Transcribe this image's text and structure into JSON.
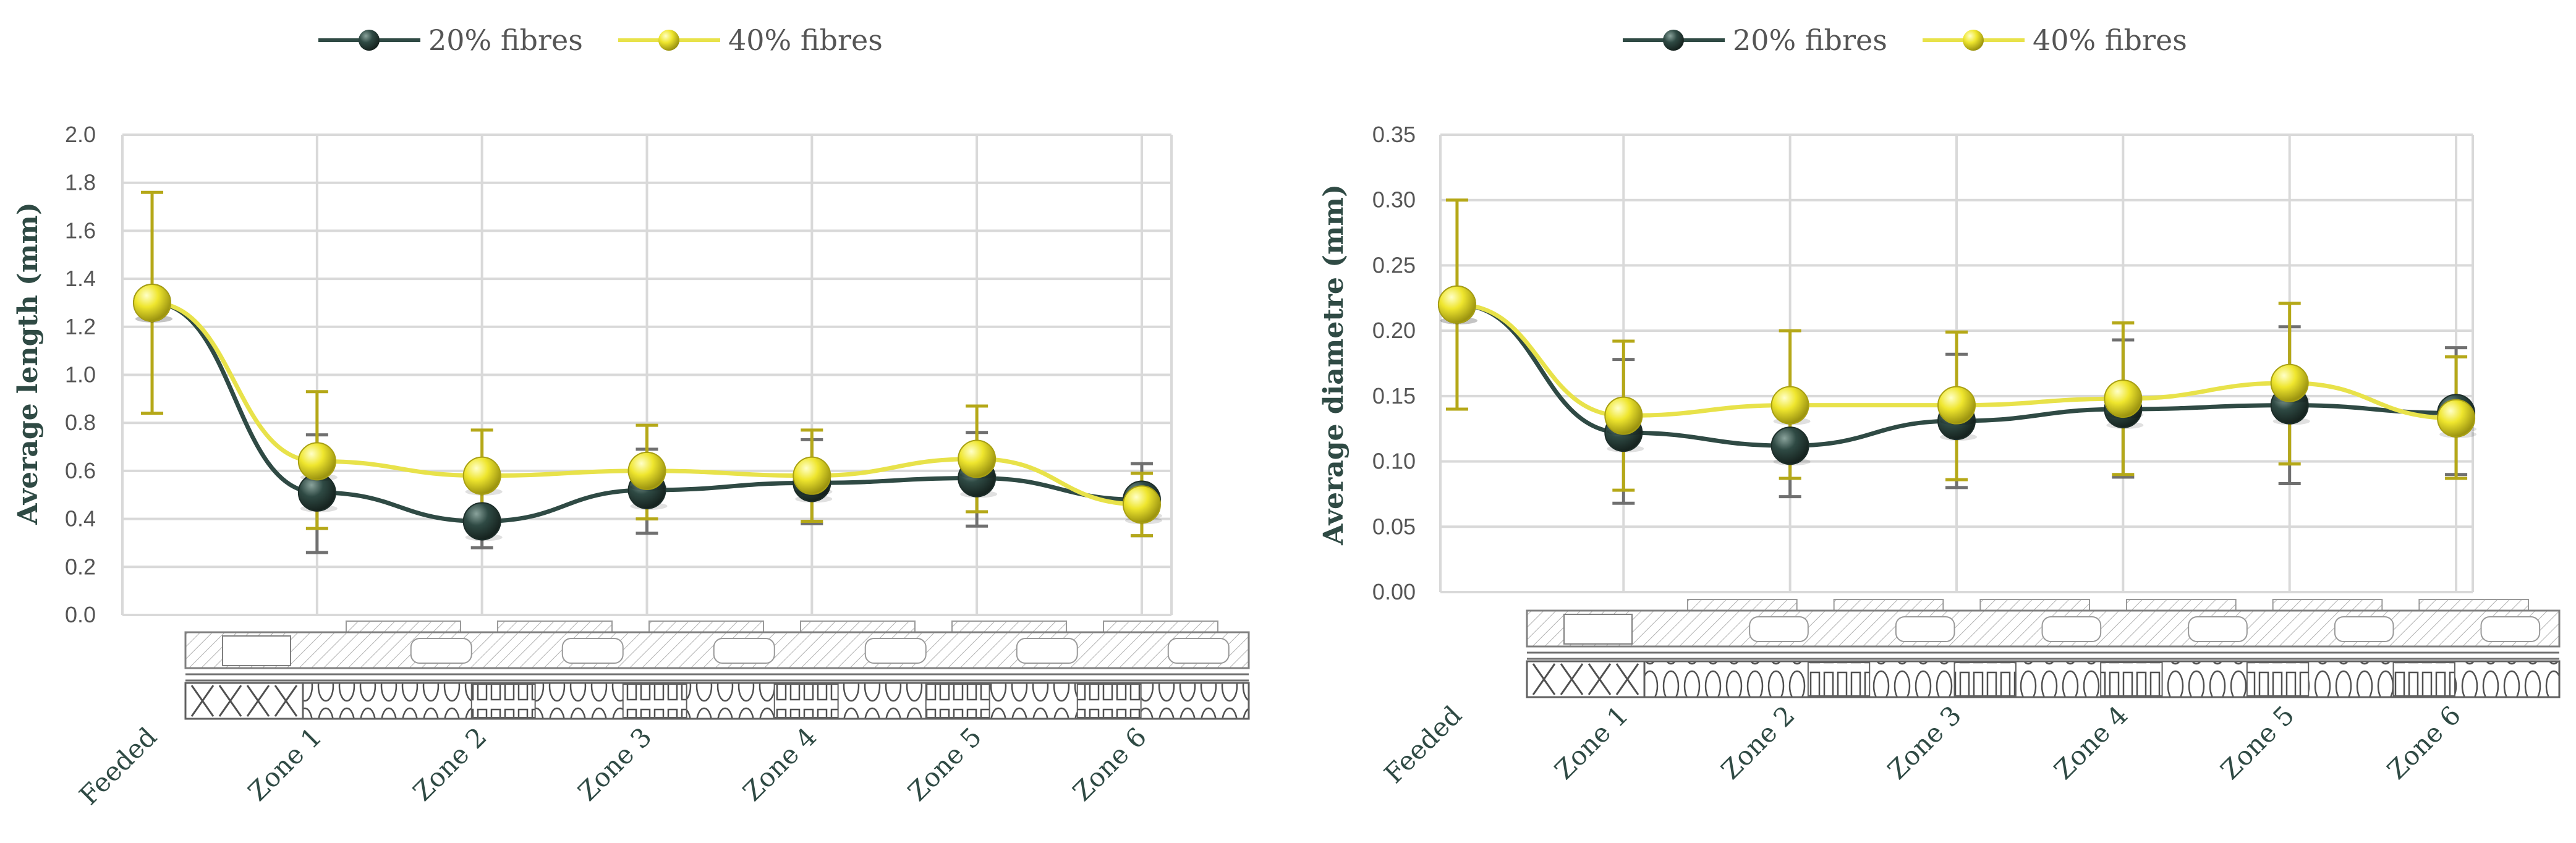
{
  "colors": {
    "series_dark": "#2f4a44",
    "series_yellow": "#e8e24a",
    "errorbar_dark": "#707070",
    "errorbar_yellow": "#b5a818",
    "grid": "#d9d9d9",
    "text": "#555555"
  },
  "chart_data": [
    {
      "type": "line",
      "title": "",
      "xlabel": "",
      "ylabel": "Average length (mm)",
      "ylim": [
        0,
        2.0
      ],
      "ytick_step": 0.2,
      "ytick_labels": [
        "0.0",
        "0.2",
        "0.4",
        "0.6",
        "0.8",
        "1.0",
        "1.2",
        "1.4",
        "1.6",
        "1.8",
        "2.0"
      ],
      "categories": [
        "Feeded",
        "Zone 1",
        "Zone 2",
        "Zone 3",
        "Zone 4",
        "Zone 5",
        "Zone 6"
      ],
      "legend": [
        "20% fibres",
        "40% fibres"
      ],
      "legend_position": "top",
      "grid": true,
      "series": [
        {
          "name": "20% fibres",
          "values": [
            1.3,
            0.51,
            0.39,
            0.52,
            0.55,
            0.57,
            0.48
          ],
          "err_low": [
            1.3,
            0.26,
            0.28,
            0.34,
            0.38,
            0.37,
            0.33
          ],
          "err_high": [
            1.3,
            0.75,
            0.52,
            0.69,
            0.73,
            0.76,
            0.63
          ]
        },
        {
          "name": "40% fibres",
          "values": [
            1.3,
            0.64,
            0.58,
            0.6,
            0.58,
            0.65,
            0.46
          ],
          "err_low": [
            0.84,
            0.36,
            0.4,
            0.4,
            0.39,
            0.43,
            0.33
          ],
          "err_high": [
            1.76,
            0.93,
            0.77,
            0.79,
            0.77,
            0.87,
            0.59
          ]
        }
      ]
    },
    {
      "type": "line",
      "title": "",
      "xlabel": "",
      "ylabel": "Average diametre (mm)",
      "ylim": [
        0,
        0.35
      ],
      "ytick_step": 0.05,
      "ytick_labels": [
        "0.00",
        "0.05",
        "0.10",
        "0.15",
        "0.20",
        "0.25",
        "0.30",
        "0.35"
      ],
      "categories": [
        "Feeded",
        "Zone 1",
        "Zone 2",
        "Zone 3",
        "Zone 4",
        "Zone 5",
        "Zone 6"
      ],
      "legend": [
        "20% fibres",
        "40% fibres"
      ],
      "legend_position": "top",
      "grid": true,
      "series": [
        {
          "name": "20% fibres",
          "values": [
            0.22,
            0.122,
            0.112,
            0.131,
            0.14,
            0.143,
            0.137
          ],
          "err_low": [
            0.22,
            0.068,
            0.073,
            0.08,
            0.088,
            0.083,
            0.09
          ],
          "err_high": [
            0.22,
            0.178,
            0.15,
            0.182,
            0.193,
            0.203,
            0.187
          ]
        },
        {
          "name": "40% fibres",
          "values": [
            0.22,
            0.135,
            0.143,
            0.143,
            0.148,
            0.16,
            0.133
          ],
          "err_low": [
            0.14,
            0.078,
            0.087,
            0.086,
            0.09,
            0.098,
            0.087
          ],
          "err_high": [
            0.3,
            0.192,
            0.2,
            0.199,
            0.206,
            0.221,
            0.18
          ]
        }
      ]
    }
  ]
}
